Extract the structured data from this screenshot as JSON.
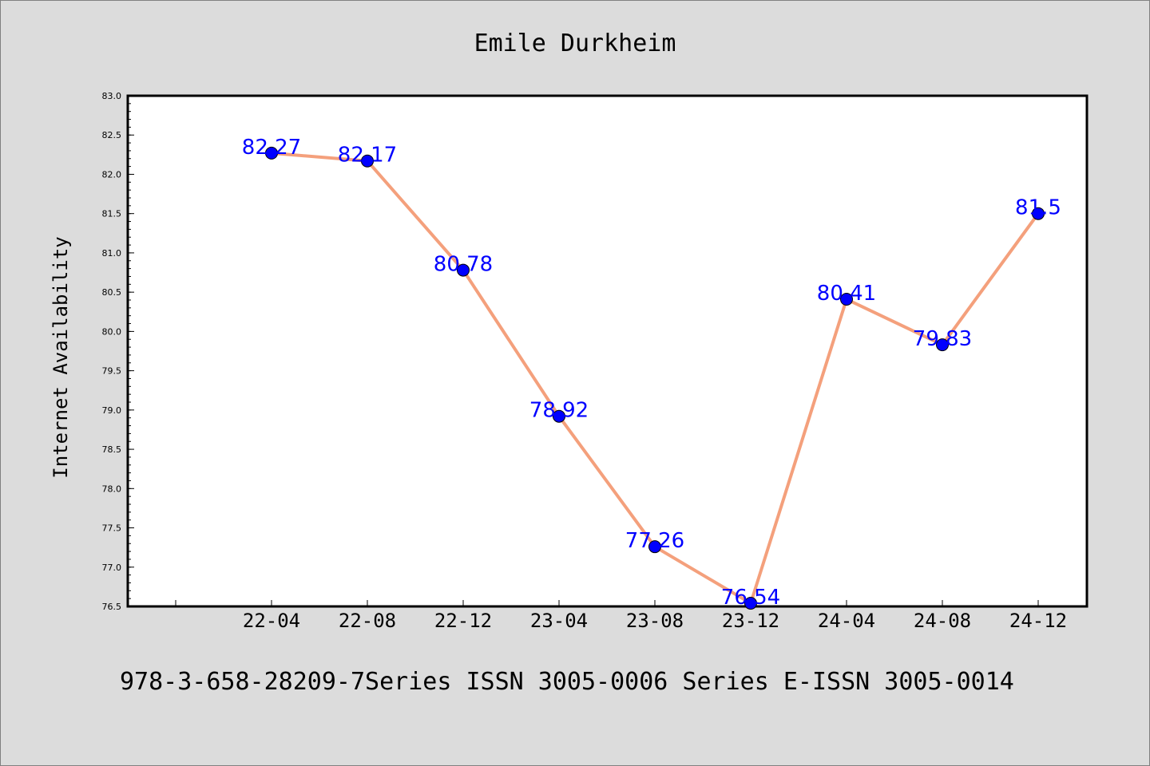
{
  "chart_data": {
    "type": "line",
    "title": "Emile Durkheim",
    "xlabel": "",
    "ylabel": "Internet Availability",
    "categories": [
      "22-04",
      "22-08",
      "22-12",
      "23-04",
      "23-08",
      "23-12",
      "24-04",
      "24-08",
      "24-12"
    ],
    "series": [
      {
        "values": [
          82.27,
          82.17,
          80.78,
          78.92,
          77.26,
          76.54,
          80.41,
          79.83,
          81.5
        ],
        "data_labels": [
          "82.27",
          "82.17",
          "80.78",
          "78.92",
          "77.26",
          "76.54",
          "80.41",
          "79.83",
          "81.5"
        ],
        "line_color": "#f4a07c",
        "marker_color": "#0000ff"
      }
    ],
    "ylim": [
      76.5,
      83.0
    ],
    "yticks": [
      "76.5",
      "77.0",
      "77.5",
      "78.0",
      "78.5",
      "79.0",
      "79.5",
      "80.0",
      "80.5",
      "81.0",
      "81.5",
      "82.0",
      "82.5",
      "83.0"
    ],
    "grid": false,
    "legend": "none"
  },
  "footer": "978-3-658-28209-7Series ISSN 3005-0006 Series E-ISSN 3005-0014",
  "colors": {
    "background": "#dcdcdc",
    "plot_background": "#ffffff",
    "line": "#f4a07c",
    "marker": "#0000ff",
    "label": "#0000ff"
  }
}
